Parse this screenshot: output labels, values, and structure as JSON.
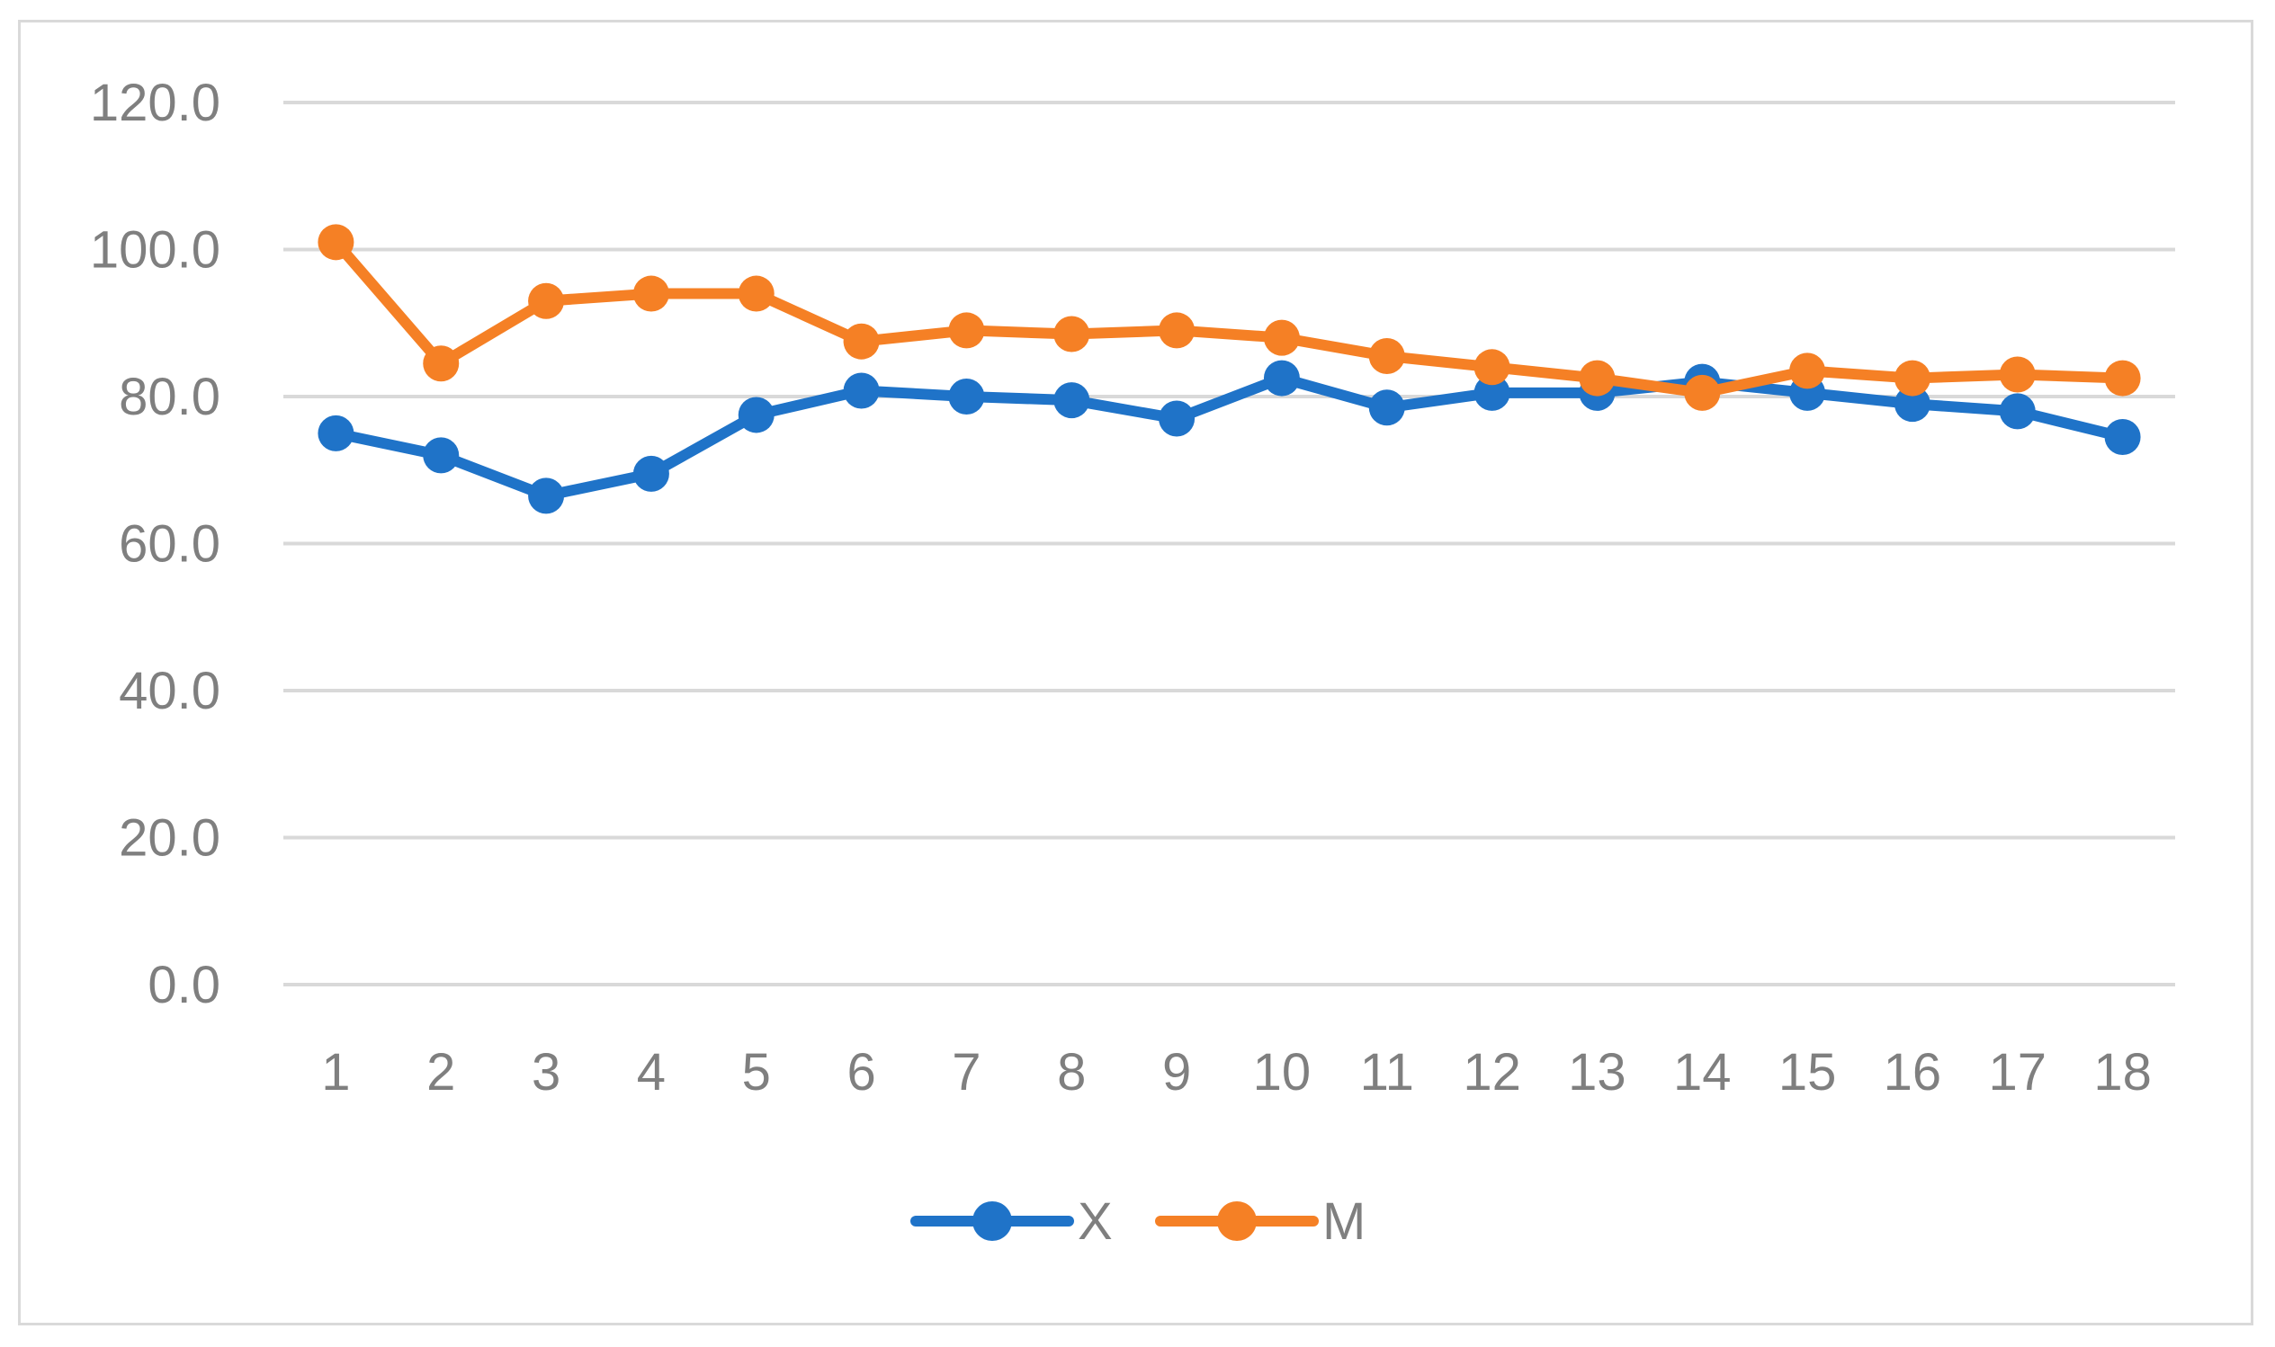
{
  "chart_data": {
    "type": "line",
    "title": "",
    "xlabel": "",
    "ylabel": "",
    "categories": [
      "1",
      "2",
      "3",
      "4",
      "5",
      "6",
      "7",
      "8",
      "9",
      "10",
      "11",
      "12",
      "13",
      "14",
      "15",
      "16",
      "17",
      "18"
    ],
    "ylim": [
      0,
      120
    ],
    "y_ticks": [
      "0.0",
      "20.0",
      "40.0",
      "60.0",
      "80.0",
      "100.0",
      "120.0"
    ],
    "grid": true,
    "legend_position": "bottom",
    "series": [
      {
        "name": "X",
        "color": "#1f73c8",
        "values": [
          75.0,
          72.0,
          66.5,
          69.5,
          77.5,
          80.8,
          80.0,
          79.5,
          77.0,
          82.5,
          78.5,
          80.5,
          80.5,
          82.0,
          80.5,
          79.0,
          78.0,
          74.5
        ]
      },
      {
        "name": "M",
        "color": "#f58025",
        "values": [
          101.0,
          84.5,
          93.0,
          94.0,
          94.0,
          87.5,
          89.0,
          88.5,
          89.0,
          88.0,
          85.5,
          84.0,
          82.5,
          80.5,
          83.5,
          82.5,
          83.0,
          82.5
        ]
      }
    ]
  }
}
